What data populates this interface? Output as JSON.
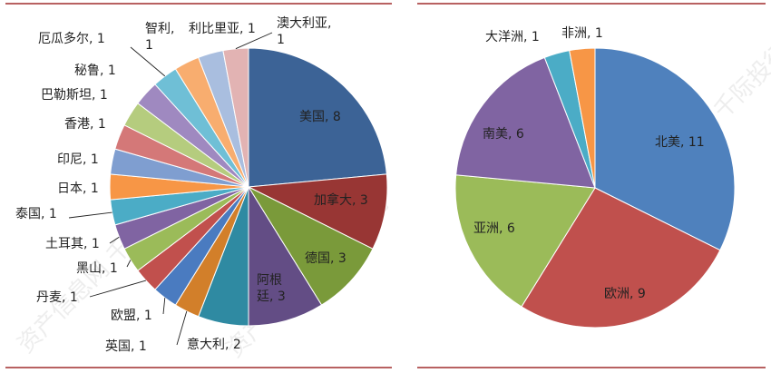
{
  "chart_data": [
    {
      "type": "pie",
      "slices": [
        {
          "label": "美国",
          "value": 8,
          "color": "#3c6396"
        },
        {
          "label": "加拿大",
          "value": 3,
          "color": "#983634"
        },
        {
          "label": "德国",
          "value": 3,
          "color": "#7a9a3a"
        },
        {
          "label": "阿根廷",
          "value": 3,
          "color": "#634d85"
        },
        {
          "label": "意大利",
          "value": 2,
          "color": "#2f8aa2"
        },
        {
          "label": "英国",
          "value": 1,
          "color": "#d27f2a"
        },
        {
          "label": "欧盟",
          "value": 1,
          "color": "#4a7bc0"
        },
        {
          "label": "丹麦",
          "value": 1,
          "color": "#c1504d"
        },
        {
          "label": "黑山",
          "value": 1,
          "color": "#9bbb59"
        },
        {
          "label": "土耳其",
          "value": 1,
          "color": "#8064a2"
        },
        {
          "label": "泰国",
          "value": 1,
          "color": "#4bacc6"
        },
        {
          "label": "日本",
          "value": 1,
          "color": "#f79646"
        },
        {
          "label": "印尼",
          "value": 1,
          "color": "#7f9ed0"
        },
        {
          "label": "香港",
          "value": 1,
          "color": "#d47878"
        },
        {
          "label": "巴勒斯坦",
          "value": 1,
          "color": "#b5cc7e"
        },
        {
          "label": "秘鲁",
          "value": 1,
          "color": "#9f89c0"
        },
        {
          "label": "厄瓜多尔",
          "value": 1,
          "color": "#6fbfd6"
        },
        {
          "label": "智利",
          "value": 1,
          "color": "#f8ad6f"
        },
        {
          "label": "利比里亚",
          "value": 1,
          "color": "#a9bedf"
        },
        {
          "label": "澳大利亚",
          "value": 1,
          "color": "#e2b3b3"
        }
      ]
    },
    {
      "type": "pie",
      "slices": [
        {
          "label": "北美",
          "value": 11,
          "color": "#4f81bd"
        },
        {
          "label": "欧洲",
          "value": 9,
          "color": "#c0504d"
        },
        {
          "label": "亚洲",
          "value": 6,
          "color": "#9bbb59"
        },
        {
          "label": "南美",
          "value": 6,
          "color": "#8064a2"
        },
        {
          "label": "大洋洲",
          "value": 1,
          "color": "#4bacc6"
        },
        {
          "label": "非洲",
          "value": 1,
          "color": "#f79646"
        }
      ]
    }
  ],
  "watermark": "资产信息网 千际投行",
  "colors": {
    "frame_line": "#a12d2d"
  }
}
